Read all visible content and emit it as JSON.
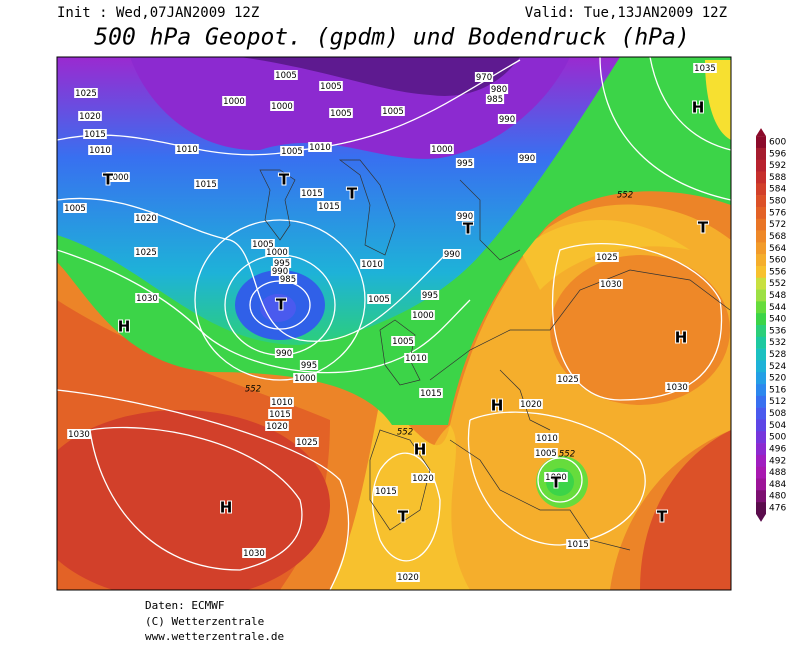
{
  "header": {
    "init": "Init : Wed,07JAN2009 12Z",
    "valid": "Valid: Tue,13JAN2009 12Z",
    "title": "500 hPa Geopot. (gpdm) und Bodendruck (hPa)"
  },
  "legend": {
    "ticks": [
      600,
      596,
      592,
      588,
      584,
      580,
      576,
      572,
      568,
      564,
      560,
      556,
      552,
      548,
      544,
      540,
      536,
      532,
      528,
      524,
      520,
      516,
      512,
      508,
      504,
      500,
      496,
      492,
      488,
      484,
      480,
      476
    ],
    "colors": [
      "#8b0a2a",
      "#a51c2e",
      "#b8222e",
      "#c62f2c",
      "#d2402a",
      "#dc5128",
      "#e36226",
      "#e97526",
      "#ee8828",
      "#f29b2a",
      "#f5ae2c",
      "#f7c12e",
      "#c8e040",
      "#9ce044",
      "#66dc3c",
      "#3cd448",
      "#2ccf7a",
      "#1ec9a0",
      "#1cc1c1",
      "#1eb2d8",
      "#249fe6",
      "#2c88ee",
      "#3870f0",
      "#4a5aee",
      "#5e46e6",
      "#7636dc",
      "#8c2ad0",
      "#a01ec0",
      "#a818b0",
      "#9c1498",
      "#7c1070",
      "#5a0c4c"
    ]
  },
  "map": {
    "pressure_labels": [
      1005,
      1025,
      1000,
      1000,
      1005,
      1005,
      1005,
      1020,
      1015,
      1010,
      1010,
      1005,
      1010,
      1000,
      995,
      990,
      990,
      980,
      985,
      970,
      1035,
      1000,
      1015,
      1015,
      1015,
      1005,
      1020,
      990,
      990,
      1025,
      1005,
      1000,
      995,
      990,
      985,
      1010,
      995,
      1005,
      1000,
      1005,
      1010,
      990,
      995,
      1000,
      1030,
      1025,
      1030,
      1025,
      1030,
      1015,
      1010,
      1015,
      1020,
      1025,
      1020,
      1010,
      1005,
      1030,
      1030,
      1020,
      1015,
      1000,
      1015,
      1020
    ],
    "contour_labels": [
      552,
      552,
      552,
      552
    ],
    "centers": [
      "H",
      "T",
      "T",
      "T",
      "T",
      "T",
      "H",
      "H",
      "H",
      "H",
      "T",
      "T",
      "T",
      "H",
      "T"
    ]
  },
  "footer": {
    "source": "Daten: ECMWF",
    "copyright": "(C) Wetterzentrale",
    "url": "www.wetterzentrale.de"
  }
}
